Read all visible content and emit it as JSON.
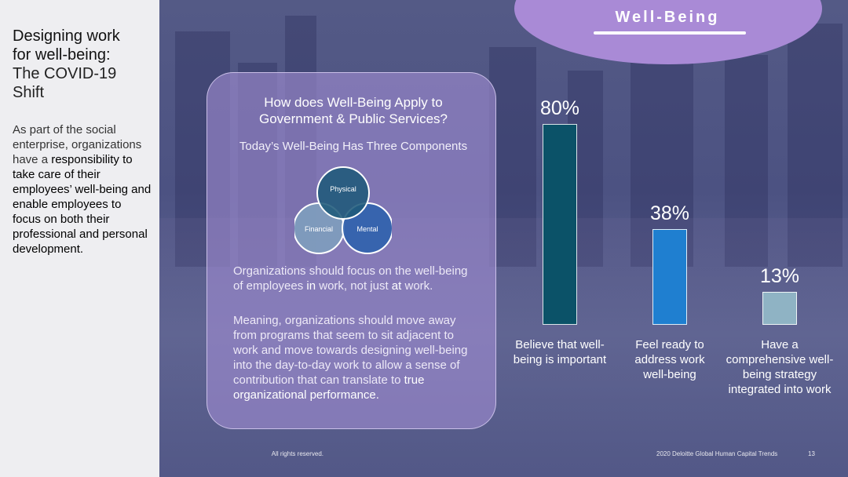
{
  "sidebar": {
    "title_line1": "Designing work",
    "title_line2": "for well-being:",
    "title_line3": "The COVID-19",
    "title_line4": "Shift",
    "body_intro": "As part of the social enterprise, organizations have a",
    "body_emphasis": "responsibility to take care of their employees’ well-being and enable employees to focus on both their professional and personal development."
  },
  "banner": {
    "label": "Well-Being",
    "color": "#a98ad6"
  },
  "card": {
    "title": "How does Well-Being Apply to Government & Public Services?",
    "subtitle": "Today’s Well-Being Has Three Components",
    "venn": {
      "top": "Physical",
      "left": "Financial",
      "right": "Mental"
    },
    "p1_a": "Organizations should focus on the well-being of employees",
    "p1_b": "in",
    "p1_c": "work, not just",
    "p1_d": "at",
    "p1_e": "work.",
    "p2_a": "Meaning, organizations should move away from programs that seem to sit adjacent to work and move towards designing well-being into the day-to-day work to allow a sense of contribution that can translate to",
    "p2_b": "true organizational performance."
  },
  "chart_data": {
    "type": "bar",
    "categories": [
      "Believe that well-being is important",
      "Feel ready to address work well-being",
      "Have a comprehensive well-being strategy integrated into work"
    ],
    "values": [
      80,
      38,
      13
    ],
    "value_labels": [
      "80%",
      "38%",
      "13%"
    ],
    "colors": [
      "#0b5268",
      "#1f7fd0",
      "#8fb3c4"
    ],
    "ylim": [
      0,
      100
    ],
    "grid": false
  },
  "footer": {
    "copyright": "All rights reserved.",
    "source": "2020 Deloitte Global Human Capital Trends",
    "page": "13"
  }
}
